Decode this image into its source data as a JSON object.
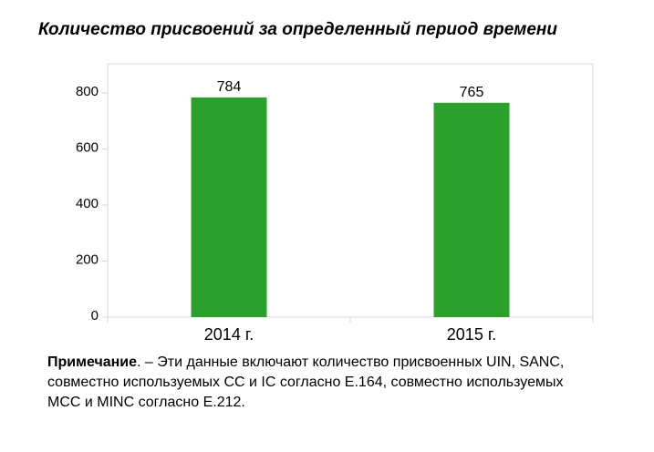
{
  "title": "Количество присвоений за определенный период времени",
  "chart_data": {
    "type": "bar",
    "title": "Количество присвоений за определенный период времени",
    "categories": [
      "2014 г.",
      "2015 г."
    ],
    "values": [
      784,
      765
    ],
    "value_labels": [
      "784",
      "765"
    ],
    "yticks": [
      0,
      200,
      400,
      600,
      800
    ],
    "ytick_labels": [
      "0",
      "200",
      "400",
      "600",
      "800"
    ],
    "ylim": [
      0,
      880
    ],
    "xlabel": "",
    "ylabel": "",
    "bar_color": "#2ca02c",
    "grid": false
  },
  "note": {
    "label": "Примечание",
    "text": ". – Эти данные включают количество присвоенных UIN, SANC, совместно используемых CC и IC согласно E.164, совместно используемых MCC и MINC согласно E.212."
  }
}
